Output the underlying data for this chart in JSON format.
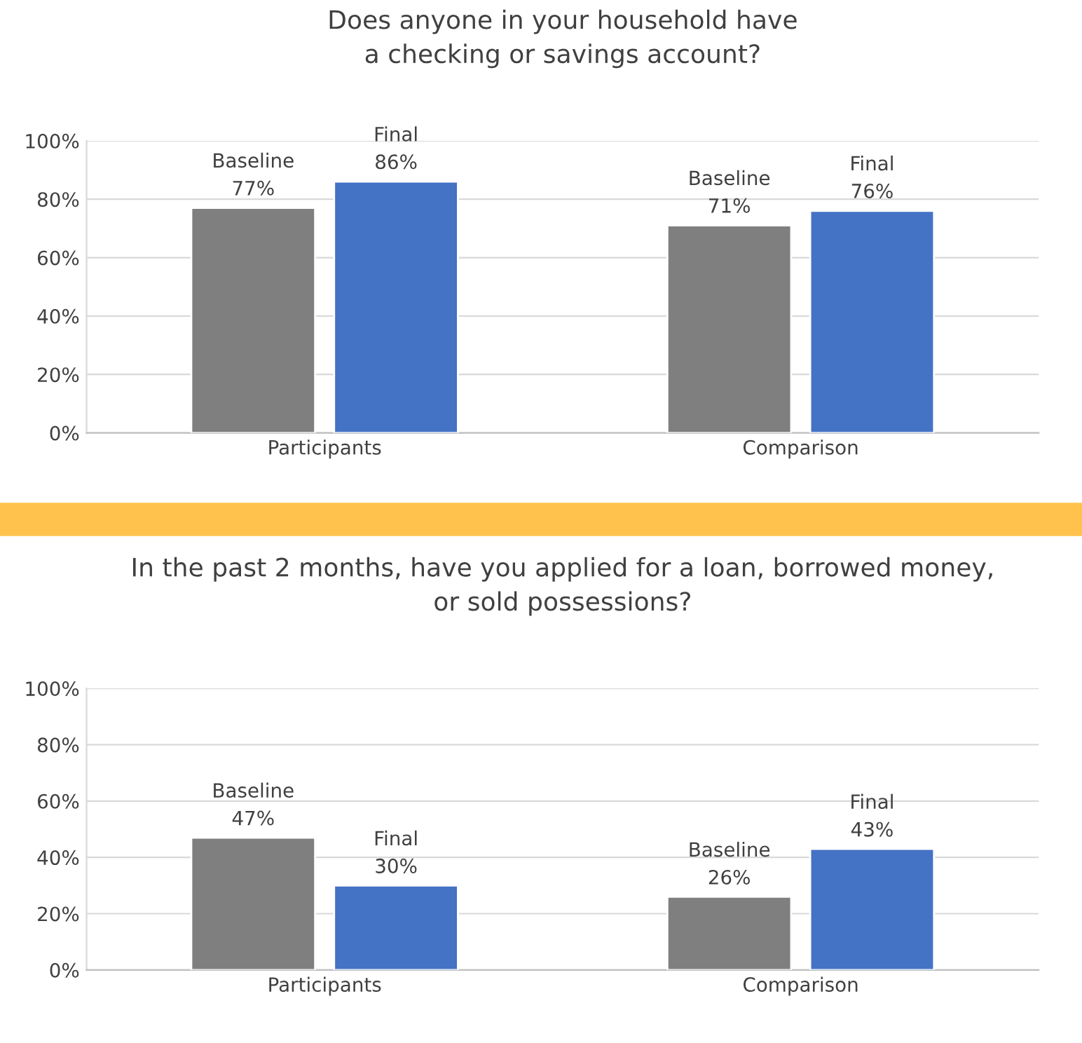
{
  "chart_data": [
    {
      "type": "bar",
      "title": "Does anyone in your household have\na checking or savings account?",
      "categories": [
        "Participants",
        "Comparison"
      ],
      "series": [
        {
          "name": "Baseline",
          "color": "#7f7f7f",
          "values": [
            77,
            71
          ],
          "value_labels": [
            "77%",
            "71%"
          ]
        },
        {
          "name": "Final",
          "color": "#4472c4",
          "values": [
            86,
            76
          ],
          "value_labels": [
            "86%",
            "76%"
          ]
        }
      ],
      "ylim": [
        0,
        100
      ],
      "yticks": [
        {
          "value": 0,
          "label": "0%"
        },
        {
          "value": 20,
          "label": "20%"
        },
        {
          "value": 40,
          "label": "40%"
        },
        {
          "value": 60,
          "label": "60%"
        },
        {
          "value": 80,
          "label": "80%"
        },
        {
          "value": 100,
          "label": "100%"
        }
      ],
      "grid": "y",
      "legend": false
    },
    {
      "type": "bar",
      "title": "In the past 2 months, have you applied for a loan, borrowed money,\nor sold possessions?",
      "categories": [
        "Participants",
        "Comparison"
      ],
      "series": [
        {
          "name": "Baseline",
          "color": "#7f7f7f",
          "values": [
            47,
            26
          ],
          "value_labels": [
            "47%",
            "26%"
          ]
        },
        {
          "name": "Final",
          "color": "#4472c4",
          "values": [
            30,
            43
          ],
          "value_labels": [
            "30%",
            "43%"
          ]
        }
      ],
      "ylim": [
        0,
        100
      ],
      "yticks": [
        {
          "value": 0,
          "label": "0%"
        },
        {
          "value": 20,
          "label": "20%"
        },
        {
          "value": 40,
          "label": "40%"
        },
        {
          "value": 60,
          "label": "60%"
        },
        {
          "value": 80,
          "label": "80%"
        },
        {
          "value": 100,
          "label": "100%"
        }
      ],
      "grid": "y",
      "legend": false
    }
  ]
}
